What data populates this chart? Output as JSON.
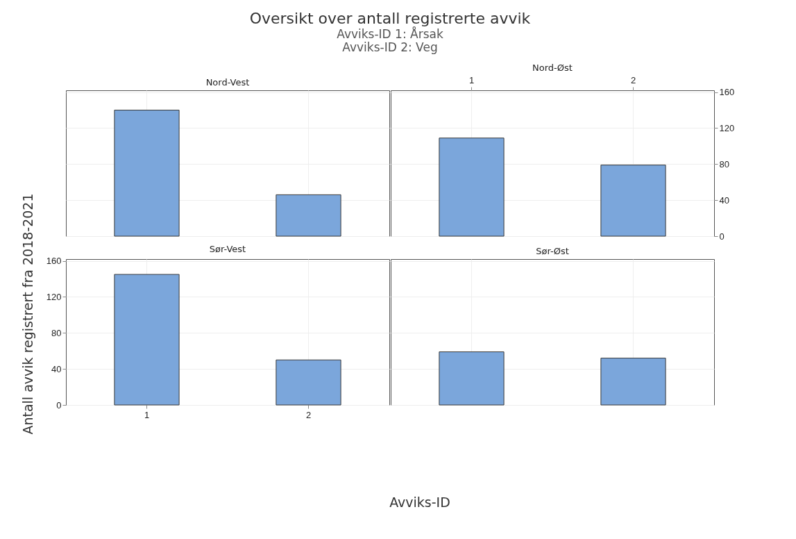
{
  "chart_data": [
    {
      "type": "bar",
      "title": "Oversikt over antall registrerte avvik",
      "subtitle": "Avviks-ID 1: Årsak\nAvviks-ID 2: Veg",
      "ylabel": "Antall avvik registrert fra 2018-2021",
      "xlabel": "Avviks-ID",
      "annotations": [
        "Nord-Vest"
      ],
      "categories": [
        "1",
        "2"
      ],
      "values": [
        140,
        46
      ],
      "color": "#7ba6db",
      "ylim": [
        0,
        162
      ],
      "yticks": [
        0,
        40,
        80,
        120,
        160
      ],
      "grid": true,
      "tick_labels": false
    },
    {
      "type": "bar",
      "annotations": [
        "Nord-Øst"
      ],
      "categories": [
        "1",
        "2"
      ],
      "values": [
        109,
        79
      ],
      "color": "#7ba6db",
      "ylim": [
        0,
        162
      ],
      "yticks": [
        0,
        40,
        80,
        120,
        160
      ],
      "grid": true
    },
    {
      "type": "bar",
      "annotations": [
        "Sør-Vest"
      ],
      "categories": [
        "1",
        "2"
      ],
      "values": [
        145,
        50
      ],
      "color": "#7ba6db",
      "ylim": [
        0,
        162
      ],
      "yticks": [
        0,
        40,
        80,
        120,
        160
      ],
      "grid": true
    },
    {
      "type": "bar",
      "annotations": [
        "Sør-Øst"
      ],
      "categories": [
        "1",
        "2"
      ],
      "values": [
        59,
        52
      ],
      "color": "#7ba6db",
      "ylim": [
        0,
        162
      ],
      "yticks": [
        0,
        40,
        80,
        120,
        160
      ],
      "grid": true,
      "tick_labels": false
    }
  ]
}
